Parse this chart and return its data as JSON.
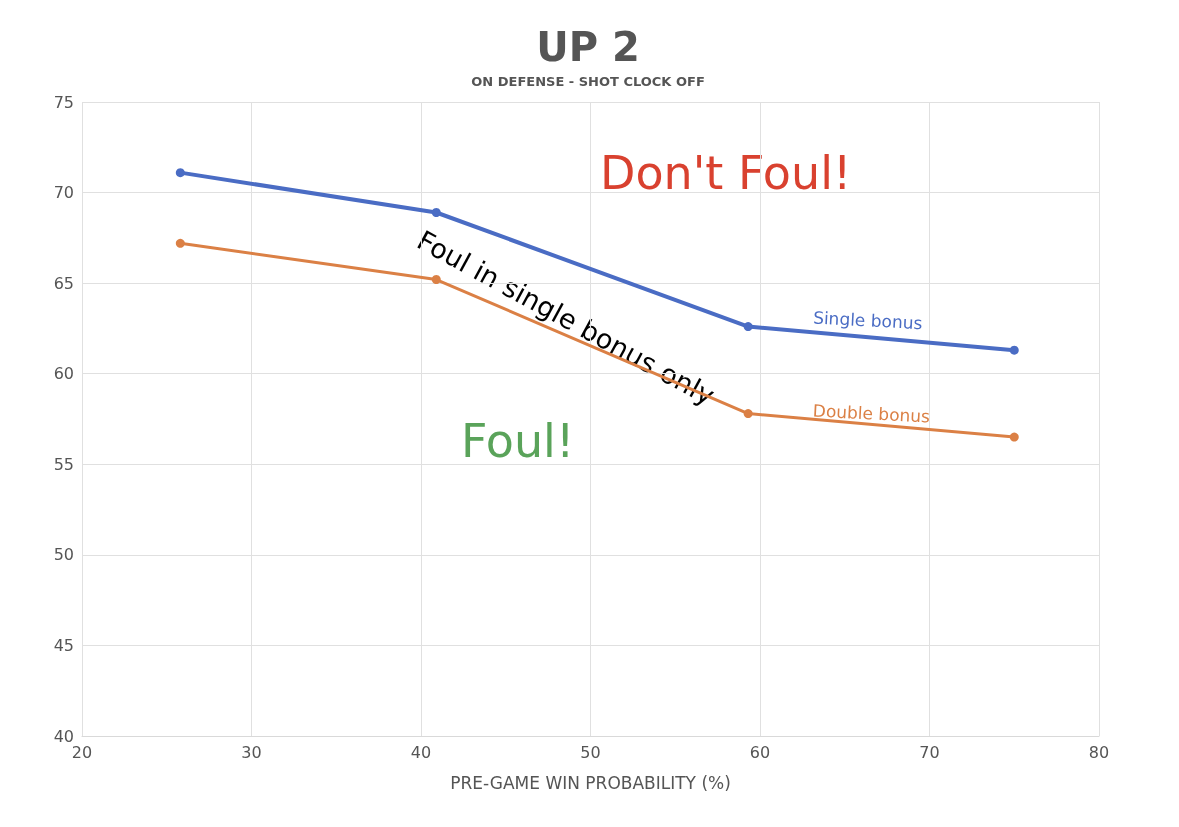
{
  "chart_data": {
    "type": "line",
    "title": "UP 2",
    "subtitle": "ON DEFENSE - SHOT CLOCK OFF",
    "xlabel": "PRE-GAME WIN PROBABILITY (%)",
    "x": [
      25.8,
      40.9,
      59.3,
      75.0
    ],
    "series": [
      {
        "name": "Single bonus",
        "color": "#4a6cc4",
        "values": [
          71.1,
          68.9,
          62.6,
          61.3
        ]
      },
      {
        "name": "Double bonus",
        "color": "#db8045",
        "values": [
          67.2,
          65.2,
          57.8,
          56.5
        ]
      }
    ],
    "xlim": [
      20,
      80
    ],
    "xticks": [
      20,
      30,
      40,
      50,
      60,
      70,
      80
    ],
    "ylim": [
      40,
      75
    ],
    "yticks": [
      40,
      45,
      50,
      55,
      60,
      65,
      70,
      75
    ],
    "grid": true,
    "legend": false,
    "marker": "circle",
    "line_style": "solid",
    "annotations": [
      "Don't Foul!",
      "Foul in single bonus only",
      "Foul!"
    ]
  }
}
